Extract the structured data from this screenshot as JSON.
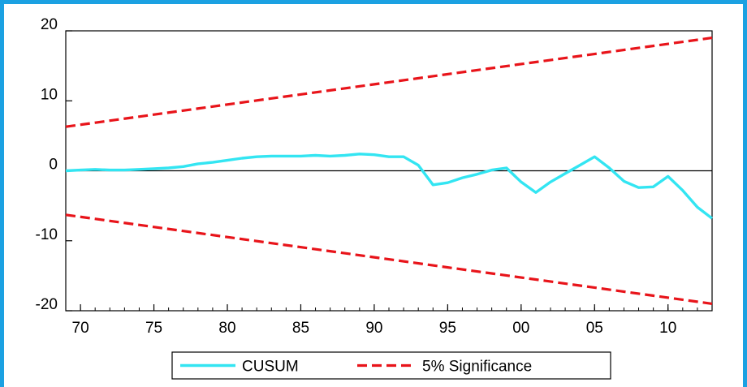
{
  "chart_data": {
    "type": "line",
    "title": "",
    "xlabel": "",
    "ylabel": "",
    "x_start": 1969,
    "x_end": 2013,
    "xlim": [
      1969,
      2013
    ],
    "ylim": [
      -20,
      20
    ],
    "x_ticks": [
      {
        "x": 1970,
        "label": "70"
      },
      {
        "x": 1975,
        "label": "75"
      },
      {
        "x": 1980,
        "label": "80"
      },
      {
        "x": 1985,
        "label": "85"
      },
      {
        "x": 1990,
        "label": "90"
      },
      {
        "x": 1995,
        "label": "95"
      },
      {
        "x": 2000,
        "label": "00"
      },
      {
        "x": 2005,
        "label": "05"
      },
      {
        "x": 2010,
        "label": "10"
      }
    ],
    "y_ticks": [
      {
        "y": 20,
        "label": "20"
      },
      {
        "y": 10,
        "label": "10"
      },
      {
        "y": 0,
        "label": "0"
      },
      {
        "y": -10,
        "label": "-10"
      },
      {
        "y": -20,
        "label": "-20"
      }
    ],
    "grid": false,
    "zero_line": true,
    "legend_position": "bottom",
    "series": [
      {
        "name": "CUSUM",
        "color": "#33e5f2",
        "style": "solid",
        "x": [
          1969,
          1970,
          1971,
          1972,
          1973,
          1974,
          1975,
          1976,
          1977,
          1978,
          1979,
          1980,
          1981,
          1982,
          1983,
          1984,
          1985,
          1986,
          1987,
          1988,
          1989,
          1990,
          1991,
          1992,
          1993,
          1994,
          1995,
          1996,
          1997,
          1998,
          1999,
          2000,
          2001,
          2002,
          2003,
          2004,
          2005,
          2006,
          2007,
          2008,
          2009,
          2010,
          2011,
          2012,
          2013
        ],
        "y": [
          0.0,
          0.1,
          0.2,
          0.1,
          0.1,
          0.2,
          0.3,
          0.4,
          0.6,
          1.0,
          1.2,
          1.5,
          1.8,
          2.0,
          2.1,
          2.1,
          2.1,
          2.2,
          2.1,
          2.2,
          2.4,
          2.3,
          2.0,
          2.0,
          0.8,
          -2.0,
          -1.7,
          -1.0,
          -0.5,
          0.1,
          0.4,
          -1.6,
          -3.1,
          -1.6,
          -0.4,
          0.8,
          2.0,
          0.4,
          -1.5,
          -2.4,
          -2.3,
          -0.8,
          -2.8,
          -5.2,
          -6.8
        ]
      },
      {
        "name": "5% Significance",
        "color": "#e8141a",
        "style": "dashed",
        "x": [
          1969,
          2013
        ],
        "y": [
          6.3,
          19.0
        ]
      },
      {
        "name": "5% Significance",
        "color": "#e8141a",
        "style": "dashed",
        "x": [
          1969,
          2013
        ],
        "y": [
          -6.3,
          -19.0
        ]
      }
    ],
    "legend": [
      {
        "label": "CUSUM",
        "color": "#33e5f2",
        "style": "solid"
      },
      {
        "label": "5% Significance",
        "color": "#e8141a",
        "style": "dashed"
      }
    ]
  }
}
